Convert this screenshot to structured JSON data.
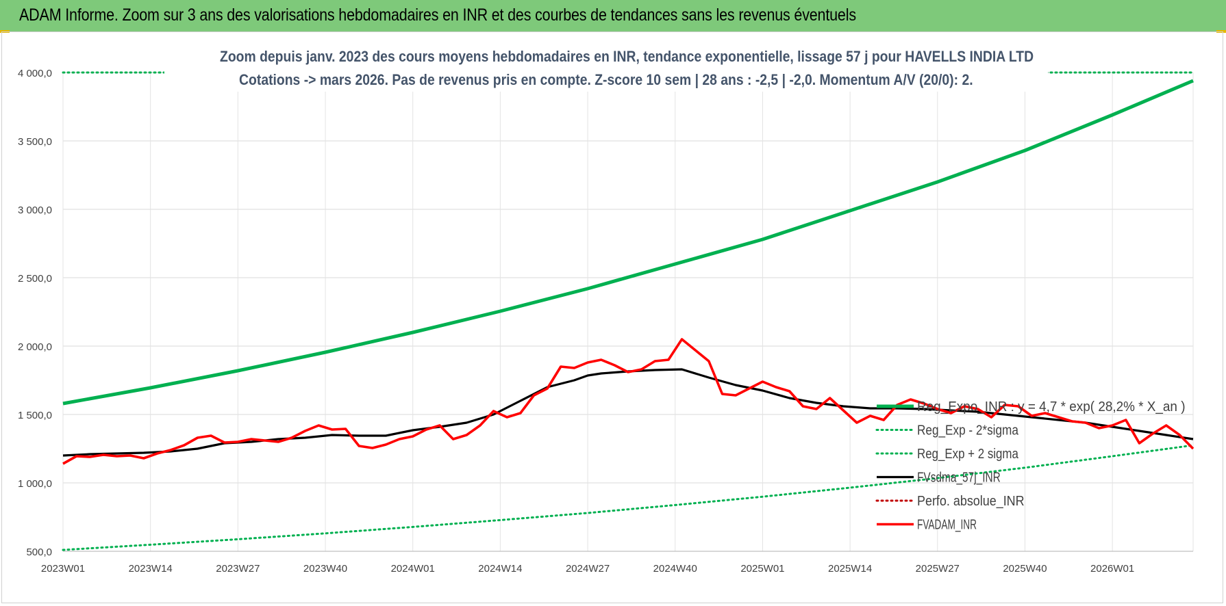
{
  "header": {
    "title": "ADAM Informe. Zoom sur 3 ans des valorisations hebdomadaires en INR et des courbes de tendances sans les revenus éventuels"
  },
  "chart_data": {
    "type": "line",
    "title": "Zoom depuis janv. 2023 des cours moyens hebdomadaires en INR, tendance exponentielle, lissage 57 j pour HAVELLS INDIA LTD",
    "subtitle": "Cotations -> mars 2026. Pas de revenus pris en compte. Z-score 10 sem | 28 ans : -2,5 | -2,0. Momentum A/V (20/0): 2.",
    "ylim": [
      500,
      4000
    ],
    "y_ticks": [
      "500,0",
      "1 000,0",
      "1 500,0",
      "2 000,0",
      "2 500,0",
      "3 000,0",
      "3 500,0",
      "4 000,0"
    ],
    "y_tick_values": [
      500,
      1000,
      1500,
      2000,
      2500,
      3000,
      3500,
      4000
    ],
    "x_range_weeks": [
      0,
      168
    ],
    "x_ticks": [
      {
        "week": 0,
        "label": "2023W01"
      },
      {
        "week": 13,
        "label": "2023W14"
      },
      {
        "week": 26,
        "label": "2023W27"
      },
      {
        "week": 39,
        "label": "2023W40"
      },
      {
        "week": 52,
        "label": "2024W01"
      },
      {
        "week": 65,
        "label": "2024W14"
      },
      {
        "week": 78,
        "label": "2024W27"
      },
      {
        "week": 91,
        "label": "2024W40"
      },
      {
        "week": 104,
        "label": "2025W01"
      },
      {
        "week": 117,
        "label": "2025W14"
      },
      {
        "week": 130,
        "label": "2025W27"
      },
      {
        "week": 143,
        "label": "2025W40"
      },
      {
        "week": 156,
        "label": "2026W01"
      }
    ],
    "series": [
      {
        "name": "Reg_Expo_INR : y = 4,7 * exp( 28,2% *  X_an )",
        "color": "#00b050",
        "style": "solid-thick",
        "x": [
          0,
          13,
          26,
          39,
          52,
          65,
          78,
          91,
          104,
          117,
          130,
          143,
          156,
          168
        ],
        "values": [
          1580,
          1695,
          1820,
          1955,
          2100,
          2255,
          2420,
          2600,
          2780,
          2990,
          3200,
          3430,
          3690,
          3940
        ]
      },
      {
        "name": "Reg_Exp - 2*sigma",
        "color": "#00b050",
        "style": "dotted",
        "x": [
          0,
          13,
          26,
          39,
          52,
          65,
          78,
          91,
          104,
          117,
          130,
          143,
          156,
          168
        ],
        "values": [
          510,
          548,
          588,
          631,
          678,
          728,
          780,
          838,
          899,
          965,
          1035,
          1111,
          1195,
          1275
        ]
      },
      {
        "name": "Reg_Exp + 2 sigma",
        "color": "#00b050",
        "style": "dotted",
        "x": [
          0,
          168
        ],
        "values": [
          4000,
          4000
        ]
      },
      {
        "name": "FVsdma_57j_INR",
        "color": "#000000",
        "style": "solid",
        "x": [
          0,
          4,
          8,
          12,
          16,
          20,
          24,
          28,
          32,
          36,
          40,
          44,
          48,
          52,
          56,
          60,
          64,
          68,
          72,
          76,
          78,
          80,
          84,
          88,
          92,
          96,
          100,
          104,
          108,
          112,
          116,
          120,
          124,
          128,
          132,
          136,
          140,
          144,
          148,
          152,
          156,
          160,
          164,
          168
        ],
        "values": [
          1200,
          1210,
          1215,
          1220,
          1230,
          1250,
          1290,
          1300,
          1320,
          1330,
          1350,
          1345,
          1345,
          1385,
          1410,
          1440,
          1500,
          1600,
          1700,
          1750,
          1785,
          1800,
          1815,
          1825,
          1830,
          1770,
          1715,
          1675,
          1620,
          1585,
          1560,
          1545,
          1545,
          1540,
          1530,
          1520,
          1500,
          1480,
          1460,
          1440,
          1410,
          1380,
          1350,
          1320
        ]
      },
      {
        "name": "Perfo. absolue_INR",
        "color": "#c00000",
        "style": "dotted",
        "x": [],
        "values": []
      },
      {
        "name": "FVADAM_INR",
        "color": "#ff0000",
        "style": "solid-thick",
        "x": [
          0,
          2,
          4,
          6,
          8,
          10,
          12,
          14,
          16,
          18,
          20,
          22,
          24,
          26,
          28,
          30,
          32,
          34,
          36,
          38,
          40,
          42,
          44,
          46,
          48,
          50,
          52,
          54,
          56,
          58,
          60,
          62,
          64,
          66,
          68,
          70,
          72,
          74,
          76,
          78,
          80,
          82,
          84,
          86,
          88,
          90,
          92,
          94,
          96,
          98,
          100,
          102,
          104,
          106,
          108,
          110,
          112,
          114,
          116,
          118,
          120,
          122,
          124,
          126,
          128,
          130,
          132,
          134,
          136,
          138,
          140,
          142,
          144,
          146,
          148,
          150,
          152,
          154,
          156,
          158,
          160,
          162,
          164,
          166,
          168
        ],
        "values": [
          1140,
          1195,
          1190,
          1205,
          1195,
          1200,
          1180,
          1215,
          1240,
          1275,
          1330,
          1345,
          1295,
          1300,
          1320,
          1310,
          1300,
          1330,
          1380,
          1420,
          1390,
          1395,
          1270,
          1255,
          1280,
          1320,
          1340,
          1390,
          1420,
          1320,
          1350,
          1420,
          1525,
          1480,
          1510,
          1640,
          1690,
          1850,
          1840,
          1880,
          1900,
          1860,
          1810,
          1830,
          1890,
          1900,
          2050,
          1970,
          1890,
          1650,
          1640,
          1690,
          1740,
          1700,
          1670,
          1560,
          1540,
          1620,
          1530,
          1440,
          1490,
          1460,
          1570,
          1610,
          1580,
          1540,
          1510,
          1560,
          1540,
          1480,
          1570,
          1560,
          1490,
          1510,
          1480,
          1450,
          1440,
          1400,
          1420,
          1460,
          1290,
          1360,
          1420,
          1350,
          1250
        ]
      }
    ],
    "legend": {
      "position": "bottom-right",
      "entries": [
        "Reg_Expo_INR : y = 4,7 * exp( 28,2% *  X_an )",
        "Reg_Exp - 2*sigma",
        "Reg_Exp + 2 sigma",
        "FVsdma_57j_INR",
        "Perfo. absolue_INR",
        "FVADAM_INR"
      ]
    },
    "grid": true
  }
}
